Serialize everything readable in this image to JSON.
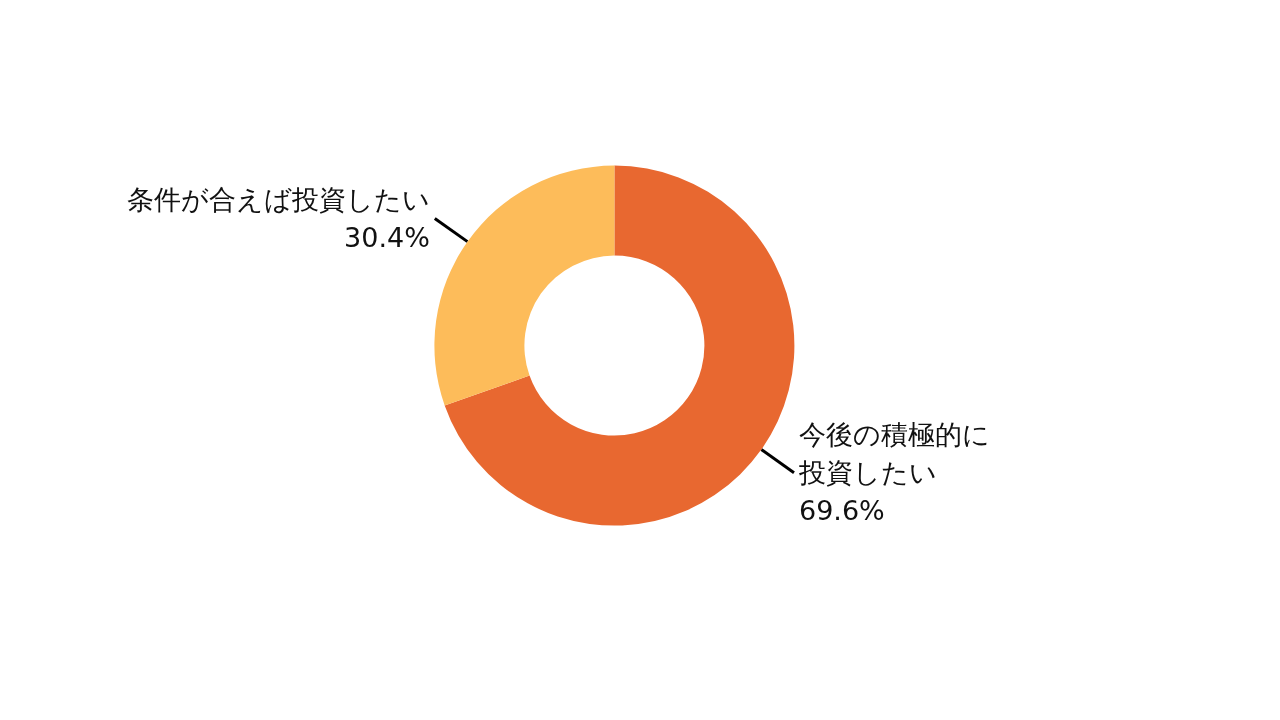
{
  "chart_data": {
    "type": "donut",
    "categories": [
      "今後の積極的に投資したい",
      "条件が合えば投資したい"
    ],
    "values": [
      69.6,
      30.4
    ],
    "colors": [
      "#e86830",
      "#fdbc5a"
    ],
    "value_labels": [
      "69.6%",
      "30.4%"
    ],
    "legend": false
  }
}
